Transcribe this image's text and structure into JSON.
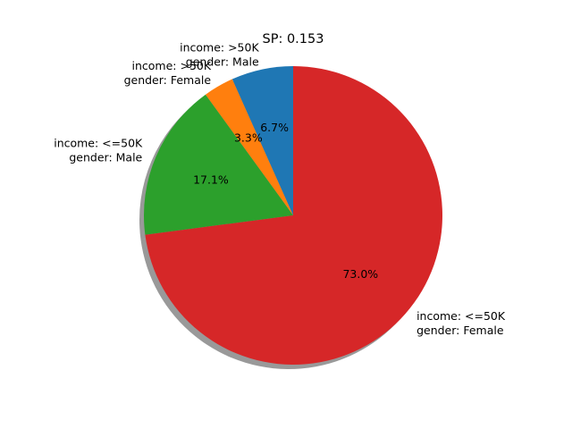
{
  "chart_data": {
    "type": "pie",
    "title": "SP: 0.153",
    "slices": [
      {
        "label_lines": [
          "income: >50K",
          "gender: Male"
        ],
        "value": 6.7,
        "pct_label": "6.7%",
        "color": "#1f77b4"
      },
      {
        "label_lines": [
          "income: >50K",
          "gender: Female"
        ],
        "value": 3.3,
        "pct_label": "3.3%",
        "color": "#ff7f0e"
      },
      {
        "label_lines": [
          "income: <=50K",
          "gender: Male"
        ],
        "value": 17.1,
        "pct_label": "17.1%",
        "color": "#2ca02c"
      },
      {
        "label_lines": [
          "income: <=50K",
          "gender: Female"
        ],
        "value": 73.0,
        "pct_label": "73.0%",
        "color": "#d62728"
      }
    ],
    "start_angle_deg": 90,
    "direction": "counterclockwise",
    "shadow": true
  }
}
